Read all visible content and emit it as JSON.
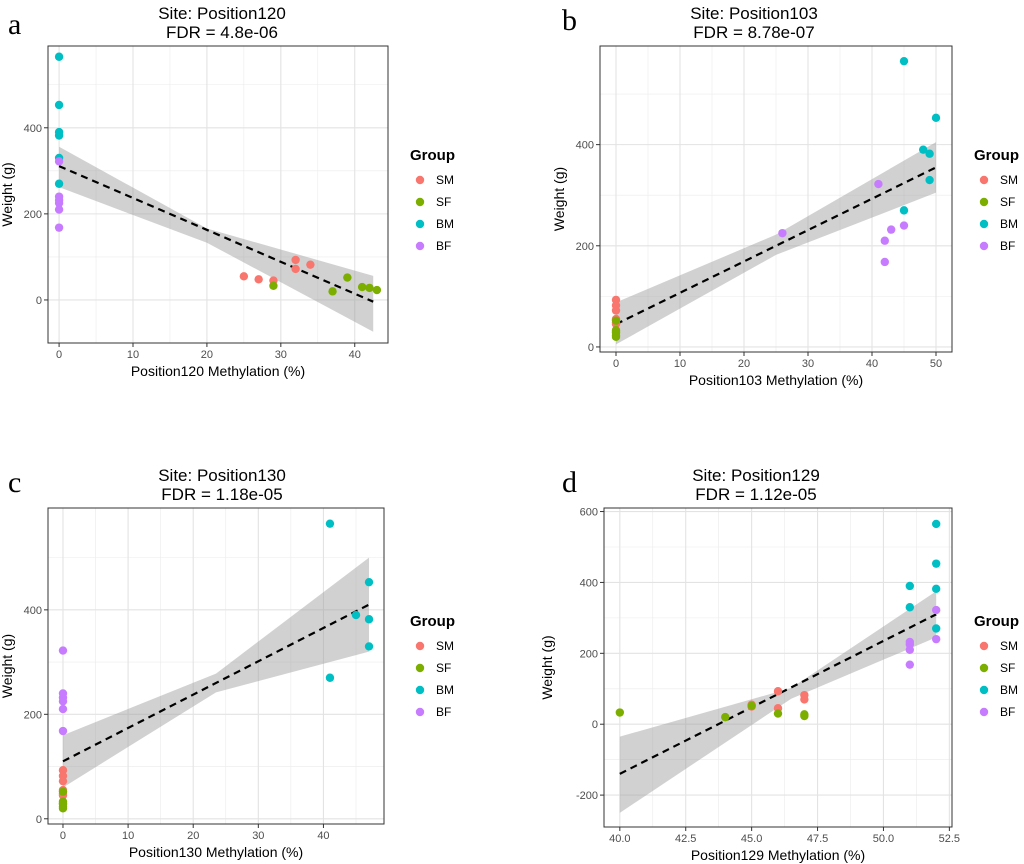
{
  "legend": {
    "title": "Group",
    "entries": [
      {
        "name": "SM",
        "color": "#F8766D"
      },
      {
        "name": "SF",
        "color": "#7CAE00"
      },
      {
        "name": "BM",
        "color": "#00BFC4"
      },
      {
        "name": "BF",
        "color": "#C77CFF"
      }
    ]
  },
  "chart_data": [
    {
      "type": "scatter",
      "letter": "a",
      "title": "Site: Position120",
      "subtitle": "FDR = 4.8e-06",
      "xlabel": "Position120 Methylation (%)",
      "ylabel": "Weight (g)",
      "xlim": [
        -1.5,
        44.5
      ],
      "ylim": [
        -100,
        590
      ],
      "xticks": [
        0,
        10,
        20,
        30,
        40
      ],
      "xtick_labels": [
        "0",
        "10",
        "20",
        "30",
        "40"
      ],
      "yticks": [
        0,
        200,
        400
      ],
      "ytick_labels": [
        "0",
        "200",
        "400"
      ],
      "grid": true,
      "legend_position": "right",
      "fit": {
        "x": [
          0,
          42.5
        ],
        "y": [
          311,
          -4
        ]
      },
      "band": {
        "x": [
          0,
          20,
          42.5
        ],
        "upper": [
          356,
          166,
          56
        ],
        "lower": [
          262,
          133,
          -74
        ]
      },
      "points": [
        {
          "x": 25,
          "y": 55,
          "group": "SM"
        },
        {
          "x": 27,
          "y": 48,
          "group": "SM"
        },
        {
          "x": 29,
          "y": 45,
          "group": "SM"
        },
        {
          "x": 32,
          "y": 93,
          "group": "SM"
        },
        {
          "x": 32,
          "y": 72,
          "group": "SM"
        },
        {
          "x": 34,
          "y": 82,
          "group": "SM"
        },
        {
          "x": 29,
          "y": 33,
          "group": "SF"
        },
        {
          "x": 37,
          "y": 20,
          "group": "SF"
        },
        {
          "x": 39,
          "y": 52,
          "group": "SF"
        },
        {
          "x": 41,
          "y": 30,
          "group": "SF"
        },
        {
          "x": 42,
          "y": 28,
          "group": "SF"
        },
        {
          "x": 43,
          "y": 23,
          "group": "SF"
        },
        {
          "x": 0,
          "y": 565,
          "group": "BM"
        },
        {
          "x": 0,
          "y": 453,
          "group": "BM"
        },
        {
          "x": 0,
          "y": 390,
          "group": "BM"
        },
        {
          "x": 0,
          "y": 382,
          "group": "BM"
        },
        {
          "x": 0,
          "y": 330,
          "group": "BM"
        },
        {
          "x": 0,
          "y": 270,
          "group": "BM"
        },
        {
          "x": 0,
          "y": 322,
          "group": "BF"
        },
        {
          "x": 0,
          "y": 240,
          "group": "BF"
        },
        {
          "x": 0,
          "y": 232,
          "group": "BF"
        },
        {
          "x": 0,
          "y": 225,
          "group": "BF"
        },
        {
          "x": 0,
          "y": 210,
          "group": "BF"
        },
        {
          "x": 0,
          "y": 168,
          "group": "BF"
        }
      ]
    },
    {
      "type": "scatter",
      "letter": "b",
      "title": "Site: Position103",
      "subtitle": "FDR = 8.78e-07",
      "xlabel": "Position103 Methylation (%)",
      "ylabel": "Weight (g)",
      "xlim": [
        -2.5,
        52.5
      ],
      "ylim": [
        -10,
        595
      ],
      "xticks": [
        0,
        10,
        20,
        30,
        40,
        50
      ],
      "xtick_labels": [
        "0",
        "10",
        "20",
        "30",
        "40",
        "50"
      ],
      "yticks": [
        0,
        200,
        400
      ],
      "ytick_labels": [
        "0",
        "200",
        "400"
      ],
      "grid": true,
      "legend_position": "right",
      "fit": {
        "x": [
          0,
          50
        ],
        "y": [
          45,
          355
        ]
      },
      "band": {
        "x": [
          0,
          25,
          50
        ],
        "upper": [
          88,
          222,
          405
        ],
        "lower": [
          5,
          182,
          305
        ]
      },
      "points": [
        {
          "x": 0,
          "y": 93,
          "group": "SM"
        },
        {
          "x": 0,
          "y": 82,
          "group": "SM"
        },
        {
          "x": 0,
          "y": 72,
          "group": "SM"
        },
        {
          "x": 0,
          "y": 55,
          "group": "SM"
        },
        {
          "x": 0,
          "y": 48,
          "group": "SM"
        },
        {
          "x": 0,
          "y": 45,
          "group": "SM"
        },
        {
          "x": 0,
          "y": 52,
          "group": "SF"
        },
        {
          "x": 0,
          "y": 33,
          "group": "SF"
        },
        {
          "x": 0,
          "y": 30,
          "group": "SF"
        },
        {
          "x": 0,
          "y": 28,
          "group": "SF"
        },
        {
          "x": 0,
          "y": 23,
          "group": "SF"
        },
        {
          "x": 0,
          "y": 20,
          "group": "SF"
        },
        {
          "x": 45,
          "y": 565,
          "group": "BM"
        },
        {
          "x": 50,
          "y": 453,
          "group": "BM"
        },
        {
          "x": 48,
          "y": 390,
          "group": "BM"
        },
        {
          "x": 49,
          "y": 382,
          "group": "BM"
        },
        {
          "x": 49,
          "y": 330,
          "group": "BM"
        },
        {
          "x": 45,
          "y": 270,
          "group": "BM"
        },
        {
          "x": 41,
          "y": 322,
          "group": "BF"
        },
        {
          "x": 45,
          "y": 240,
          "group": "BF"
        },
        {
          "x": 43,
          "y": 232,
          "group": "BF"
        },
        {
          "x": 26,
          "y": 225,
          "group": "BF"
        },
        {
          "x": 42,
          "y": 210,
          "group": "BF"
        },
        {
          "x": 42,
          "y": 168,
          "group": "BF"
        }
      ]
    },
    {
      "type": "scatter",
      "letter": "c",
      "title": "Site: Position130",
      "subtitle": "FDR = 1.18e-05",
      "xlabel": "Position130 Methylation (%)",
      "ylabel": "Weight (g)",
      "xlim": [
        -2.3,
        49.3
      ],
      "ylim": [
        -10,
        595
      ],
      "xticks": [
        0,
        10,
        20,
        30,
        40
      ],
      "xtick_labels": [
        "0",
        "10",
        "20",
        "30",
        "40"
      ],
      "yticks": [
        0,
        200,
        400
      ],
      "ytick_labels": [
        "0",
        "200",
        "400"
      ],
      "grid": true,
      "legend_position": "right",
      "fit": {
        "x": [
          0,
          47
        ],
        "y": [
          110,
          410
        ]
      },
      "band": {
        "x": [
          0,
          23.5,
          47
        ],
        "upper": [
          160,
          278,
          500
        ],
        "lower": [
          60,
          242,
          320
        ]
      },
      "points": [
        {
          "x": 0,
          "y": 93,
          "group": "SM"
        },
        {
          "x": 0,
          "y": 82,
          "group": "SM"
        },
        {
          "x": 0,
          "y": 72,
          "group": "SM"
        },
        {
          "x": 0,
          "y": 55,
          "group": "SM"
        },
        {
          "x": 0,
          "y": 48,
          "group": "SM"
        },
        {
          "x": 0,
          "y": 45,
          "group": "SM"
        },
        {
          "x": 0,
          "y": 52,
          "group": "SF"
        },
        {
          "x": 0,
          "y": 33,
          "group": "SF"
        },
        {
          "x": 0,
          "y": 30,
          "group": "SF"
        },
        {
          "x": 0,
          "y": 28,
          "group": "SF"
        },
        {
          "x": 0,
          "y": 23,
          "group": "SF"
        },
        {
          "x": 0,
          "y": 20,
          "group": "SF"
        },
        {
          "x": 41,
          "y": 565,
          "group": "BM"
        },
        {
          "x": 47,
          "y": 453,
          "group": "BM"
        },
        {
          "x": 45,
          "y": 390,
          "group": "BM"
        },
        {
          "x": 47,
          "y": 382,
          "group": "BM"
        },
        {
          "x": 47,
          "y": 330,
          "group": "BM"
        },
        {
          "x": 41,
          "y": 270,
          "group": "BM"
        },
        {
          "x": 0,
          "y": 322,
          "group": "BF"
        },
        {
          "x": 0,
          "y": 240,
          "group": "BF"
        },
        {
          "x": 0,
          "y": 232,
          "group": "BF"
        },
        {
          "x": 0,
          "y": 225,
          "group": "BF"
        },
        {
          "x": 0,
          "y": 210,
          "group": "BF"
        },
        {
          "x": 0,
          "y": 168,
          "group": "BF"
        }
      ]
    },
    {
      "type": "scatter",
      "letter": "d",
      "title": "Site: Position129",
      "subtitle": "FDR = 1.12e-05",
      "xlabel": "Position129 Methylation (%)",
      "ylabel": "Weight (g)",
      "xlim": [
        39.4,
        52.6
      ],
      "ylim": [
        -290,
        610
      ],
      "xticks": [
        40,
        42.5,
        45,
        47.5,
        50,
        52.5
      ],
      "xtick_labels": [
        "40.0",
        "42.5",
        "45.0",
        "47.5",
        "50.0",
        "52.5"
      ],
      "yticks": [
        -200,
        0,
        200,
        400,
        600
      ],
      "ytick_labels": [
        "-200",
        "0",
        "200",
        "400",
        "600"
      ],
      "grid": true,
      "legend_position": "right",
      "fit": {
        "x": [
          40,
          52
        ],
        "y": [
          -140,
          310
        ]
      },
      "band": {
        "x": [
          40,
          46.5,
          52
        ],
        "upper": [
          -35,
          102,
          375
        ],
        "lower": [
          -250,
          72,
          245
        ]
      },
      "points": [
        {
          "x": 46,
          "y": 93,
          "group": "SM"
        },
        {
          "x": 47,
          "y": 82,
          "group": "SM"
        },
        {
          "x": 47,
          "y": 70,
          "group": "SM"
        },
        {
          "x": 45,
          "y": 55,
          "group": "SM"
        },
        {
          "x": 45,
          "y": 50,
          "group": "SM"
        },
        {
          "x": 46,
          "y": 45,
          "group": "SM"
        },
        {
          "x": 40,
          "y": 33,
          "group": "SF"
        },
        {
          "x": 44,
          "y": 20,
          "group": "SF"
        },
        {
          "x": 45,
          "y": 52,
          "group": "SF"
        },
        {
          "x": 46,
          "y": 30,
          "group": "SF"
        },
        {
          "x": 47,
          "y": 28,
          "group": "SF"
        },
        {
          "x": 47,
          "y": 23,
          "group": "SF"
        },
        {
          "x": 52,
          "y": 565,
          "group": "BM"
        },
        {
          "x": 52,
          "y": 453,
          "group": "BM"
        },
        {
          "x": 51,
          "y": 390,
          "group": "BM"
        },
        {
          "x": 52,
          "y": 382,
          "group": "BM"
        },
        {
          "x": 51,
          "y": 330,
          "group": "BM"
        },
        {
          "x": 52,
          "y": 270,
          "group": "BM"
        },
        {
          "x": 52,
          "y": 322,
          "group": "BF"
        },
        {
          "x": 52,
          "y": 240,
          "group": "BF"
        },
        {
          "x": 51,
          "y": 232,
          "group": "BF"
        },
        {
          "x": 51,
          "y": 225,
          "group": "BF"
        },
        {
          "x": 51,
          "y": 210,
          "group": "BF"
        },
        {
          "x": 51,
          "y": 168,
          "group": "BF"
        }
      ]
    }
  ]
}
